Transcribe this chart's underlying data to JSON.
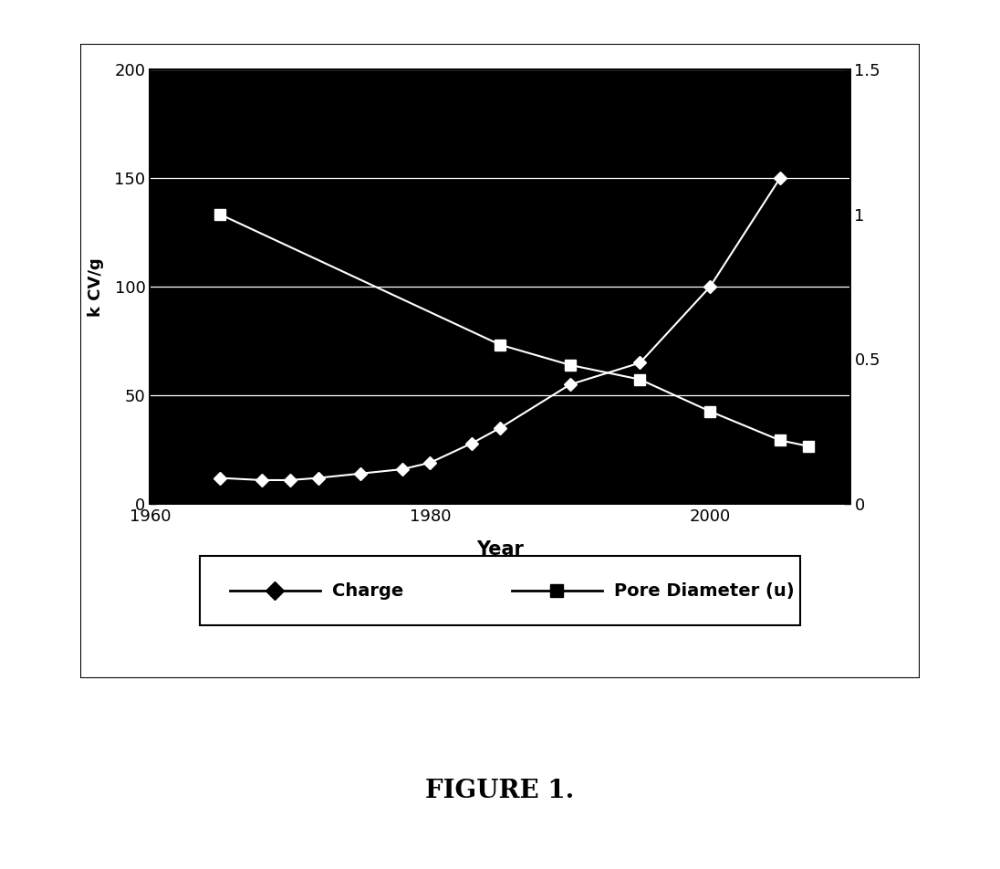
{
  "charge_years": [
    1965,
    1968,
    1970,
    1972,
    1975,
    1978,
    1980,
    1983,
    1985,
    1990,
    1995,
    2000,
    2005
  ],
  "charge_values": [
    12,
    11,
    11,
    12,
    14,
    16,
    19,
    28,
    35,
    55,
    65,
    100,
    150
  ],
  "pore_years": [
    1965,
    1985,
    1990,
    1995,
    2000,
    2005,
    2007
  ],
  "pore_values": [
    1.0,
    0.55,
    0.48,
    0.43,
    0.32,
    0.22,
    0.2
  ],
  "charge_label": "Charge",
  "pore_label": "Pore Diameter (u)",
  "xlabel": "Year",
  "ylabel_left": "k CV/g",
  "ylim_left": [
    0,
    200
  ],
  "ylim_right": [
    0,
    1.5
  ],
  "xlim": [
    1960,
    2010
  ],
  "xticks": [
    1960,
    1980,
    2000
  ],
  "yticks_left": [
    0,
    50,
    100,
    150,
    200
  ],
  "yticks_right": [
    0,
    0.5,
    1.0,
    1.5
  ],
  "plot_bg_color": "#000000",
  "fig_bg_color": "#ffffff",
  "line_color": "#ffffff",
  "figure_label": "FIGURE 1.",
  "figure_label_fontsize": 20
}
